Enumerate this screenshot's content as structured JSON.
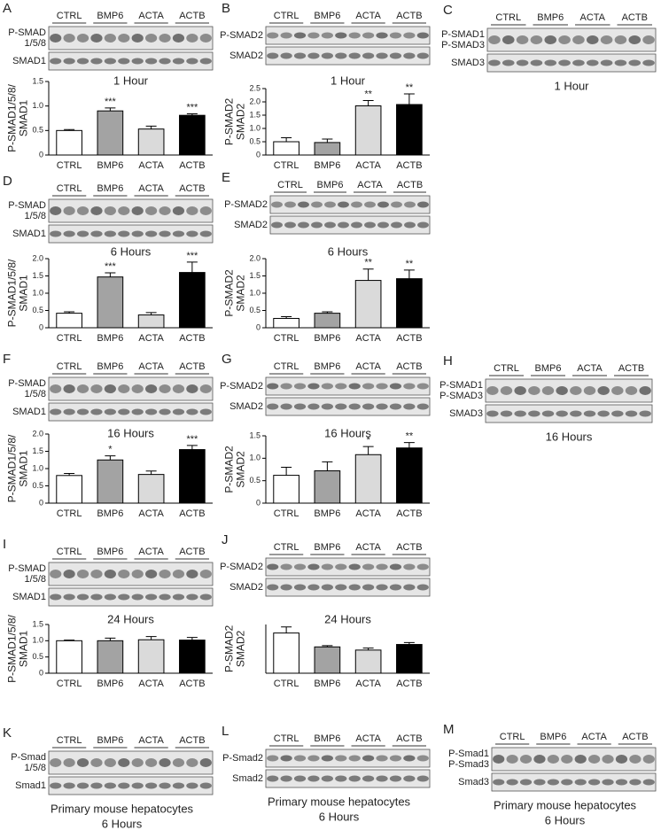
{
  "blots": [
    {
      "label": "A",
      "groups": [
        "CTRL",
        "BMP6",
        "ACTA",
        "ACTB"
      ],
      "rows": [
        [
          "P-SMAD",
          "1/5/8"
        ],
        [
          "SMAD1"
        ]
      ]
    },
    {
      "label": "B",
      "groups": [
        "CTRL",
        "BMP6",
        "ACTA",
        "ACTB"
      ],
      "rows": [
        [
          "P-SMAD2"
        ],
        [
          "SMAD2"
        ]
      ]
    },
    {
      "label": "C",
      "groups": [
        "CTRL",
        "BMP6",
        "ACTA",
        "ACTB"
      ],
      "rows": [
        [
          "P-SMAD1",
          "P-SMAD3"
        ],
        [
          "SMAD3"
        ]
      ],
      "caption": [
        "1 Hour"
      ]
    },
    {
      "label": "D",
      "groups": [
        "CTRL",
        "BMP6",
        "ACTA",
        "ACTB"
      ],
      "rows": [
        [
          "P-SMAD",
          "1/5/8"
        ],
        [
          "SMAD1"
        ]
      ]
    },
    {
      "label": "E",
      "groups": [
        "CTRL",
        "BMP6",
        "ACTA",
        "ACTB"
      ],
      "rows": [
        [
          "P-SMAD2"
        ],
        [
          "SMAD2"
        ]
      ]
    },
    {
      "label": "F",
      "groups": [
        "CTRL",
        "BMP6",
        "ACTA",
        "ACTB"
      ],
      "rows": [
        [
          "P-SMAD",
          "1/5/8"
        ],
        [
          "SMAD1"
        ]
      ]
    },
    {
      "label": "G",
      "groups": [
        "CTRL",
        "BMP6",
        "ACTA",
        "ACTB"
      ],
      "rows": [
        [
          "P-SMAD2"
        ],
        [
          "SMAD2"
        ]
      ]
    },
    {
      "label": "H",
      "groups": [
        "CTRL",
        "BMP6",
        "ACTA",
        "ACTB"
      ],
      "rows": [
        [
          "P-SMAD1",
          "P-SMAD3"
        ],
        [
          "SMAD3"
        ]
      ],
      "caption": [
        "16 Hours"
      ]
    },
    {
      "label": "I",
      "groups": [
        "CTRL",
        "BMP6",
        "ACTA",
        "ACTB"
      ],
      "rows": [
        [
          "P-SMAD",
          "1/5/8"
        ],
        [
          "SMAD1"
        ]
      ]
    },
    {
      "label": "J",
      "groups": [
        "CTRL",
        "BMP6",
        "ACTA",
        "ACTB"
      ],
      "rows": [
        [
          "P-SMAD2"
        ],
        [
          "SMAD2"
        ]
      ]
    },
    {
      "label": "K",
      "groups": [
        "CTRL",
        "BMP6",
        "ACTA",
        "ACTB"
      ],
      "rows": [
        [
          "P-Smad",
          "1/5/8"
        ],
        [
          "Smad1"
        ]
      ],
      "caption": [
        "Primary mouse hepatocytes",
        "6 Hours"
      ]
    },
    {
      "label": "L",
      "groups": [
        "CTRL",
        "BMP6",
        "ACTA",
        "ACTB"
      ],
      "rows": [
        [
          "P-Smad2"
        ],
        [
          "Smad2"
        ]
      ],
      "caption": [
        "Primary mouse hepatocytes",
        "6 Hours"
      ]
    },
    {
      "label": "M",
      "groups": [
        "CTRL",
        "BMP6",
        "ACTA",
        "ACTB"
      ],
      "rows": [
        [
          "P-Smad1",
          "P-Smad3"
        ],
        [
          "Smad3"
        ]
      ],
      "caption": [
        "Primary mouse hepatocytes",
        "6 Hours"
      ]
    }
  ],
  "chart_data": [
    {
      "type": "bar",
      "title": "1 Hour",
      "y_label": [
        "P-SMAD1/5/8/",
        "SMAD1"
      ],
      "categories": [
        "CTRL",
        "BMP6",
        "ACTA",
        "ACTB"
      ],
      "colors": [
        "#ffffff",
        "#a3a3a3",
        "#dadada",
        "#000000"
      ],
      "values": [
        0.5,
        0.9,
        0.53,
        0.81
      ],
      "errors": [
        0.02,
        0.06,
        0.06,
        0.03
      ],
      "annotations": [
        null,
        "***",
        null,
        "***"
      ],
      "ylim": [
        0,
        1.5
      ],
      "yticks": [
        0,
        0.5,
        {
          "value": 1,
          "label": "1.0"
        },
        1.5
      ]
    },
    {
      "type": "bar",
      "title": "1 Hour",
      "y_label": [
        "P-SMAD2",
        "SMAD2"
      ],
      "categories": [
        "CTRL",
        "BMP6",
        "ACTA",
        "ACTB"
      ],
      "colors": [
        "#ffffff",
        "#a3a3a3",
        "#dadada",
        "#000000"
      ],
      "values": [
        0.5,
        0.47,
        1.85,
        1.9
      ],
      "errors": [
        0.15,
        0.13,
        0.2,
        0.4
      ],
      "annotations": [
        null,
        null,
        "**",
        "**"
      ],
      "ylim": [
        0,
        2.5
      ],
      "yticks": [
        0,
        0.5,
        {
          "value": 1,
          "label": "1.0"
        },
        1.5,
        {
          "value": 2,
          "label": "2.0"
        },
        2.5
      ]
    },
    {
      "type": "bar",
      "title": "6 Hours",
      "y_label": [
        "P-SMAD1/5/8/",
        "SMAD1"
      ],
      "categories": [
        "CTRL",
        "BMP6",
        "ACTA",
        "ACTB"
      ],
      "colors": [
        "#ffffff",
        "#a3a3a3",
        "#dadada",
        "#000000"
      ],
      "values": [
        0.42,
        1.47,
        0.37,
        1.6
      ],
      "errors": [
        0.04,
        0.12,
        0.07,
        0.3
      ],
      "annotations": [
        null,
        "***",
        null,
        "***"
      ],
      "ylim": [
        0,
        2
      ],
      "yticks": [
        0,
        0.5,
        {
          "value": 1,
          "label": "1.0"
        },
        1.5,
        {
          "value": 2,
          "label": "2.0"
        }
      ]
    },
    {
      "type": "bar",
      "title": "6 Hours",
      "y_label": [
        "P-SMAD2",
        "SMAD2"
      ],
      "categories": [
        "CTRL",
        "BMP6",
        "ACTA",
        "ACTB"
      ],
      "colors": [
        "#ffffff",
        "#a3a3a3",
        "#dadada",
        "#000000"
      ],
      "values": [
        0.27,
        0.42,
        1.37,
        1.42
      ],
      "errors": [
        0.05,
        0.04,
        0.33,
        0.25
      ],
      "annotations": [
        null,
        null,
        "**",
        "**"
      ],
      "ylim": [
        0,
        2
      ],
      "yticks": [
        0,
        0.5,
        {
          "value": 1,
          "label": "1.0"
        },
        1.5,
        {
          "value": 2,
          "label": "2.0"
        }
      ]
    },
    {
      "type": "bar",
      "title": "16 Hours",
      "y_label": [
        "P-SMAD1/5/8/",
        "SMAD1"
      ],
      "categories": [
        "CTRL",
        "BMP6",
        "ACTA",
        "ACTB"
      ],
      "colors": [
        "#ffffff",
        "#a3a3a3",
        "#dadada",
        "#000000"
      ],
      "values": [
        0.8,
        1.25,
        0.83,
        1.55
      ],
      "errors": [
        0.06,
        0.12,
        0.1,
        0.12
      ],
      "annotations": [
        null,
        "*",
        null,
        "***"
      ],
      "ylim": [
        0,
        2
      ],
      "yticks": [
        0,
        0.5,
        {
          "value": 1,
          "label": "1.0"
        },
        1.5,
        {
          "value": 2,
          "label": "2.0"
        }
      ]
    },
    {
      "type": "bar",
      "title": "16 Hours",
      "y_label": [
        "P-SMAD2",
        "SMAD2"
      ],
      "categories": [
        "CTRL",
        "BMP6",
        "ACTA",
        "ACTB"
      ],
      "colors": [
        "#ffffff",
        "#a3a3a3",
        "#dadada",
        "#000000"
      ],
      "values": [
        0.62,
        0.72,
        1.08,
        1.23
      ],
      "errors": [
        0.18,
        0.2,
        0.18,
        0.12
      ],
      "annotations": [
        null,
        null,
        "*",
        "**"
      ],
      "ylim": [
        0,
        1.5
      ],
      "yticks": [
        0,
        0.5,
        {
          "value": 1,
          "label": "1.0"
        },
        1.5
      ]
    },
    {
      "type": "bar",
      "title": "24 Hours",
      "y_label": [
        "P-SMAD1/5/8/",
        "SMAD1"
      ],
      "categories": [
        "CTRL",
        "BMP6",
        "ACTA",
        "ACTB"
      ],
      "colors": [
        "#ffffff",
        "#a3a3a3",
        "#dadada",
        "#000000"
      ],
      "values": [
        1,
        1,
        1.03,
        1.02
      ],
      "errors": [
        0.02,
        0.08,
        0.1,
        0.08
      ],
      "annotations": [
        null,
        null,
        null,
        null
      ],
      "ylim": [
        0,
        1.5
      ],
      "yticks": [
        0,
        0.5,
        {
          "value": 1,
          "label": "1.0"
        },
        1.5
      ]
    },
    {
      "type": "bar",
      "title": "24 Hours",
      "y_label": [
        "P-SMAD2",
        "SMAD2"
      ],
      "categories": [
        "CTRL",
        "BMP6",
        "ACTA",
        "ACTB"
      ],
      "colors": [
        "#ffffff",
        "#a3a3a3",
        "#dadada",
        "#000000"
      ],
      "values": [
        1.65,
        1.08,
        0.95,
        1.18
      ],
      "errors": [
        0.25,
        0.05,
        0.08,
        0.08
      ],
      "annotations": [
        null,
        null,
        null,
        null
      ],
      "ylim": [
        0,
        2
      ]
    }
  ]
}
